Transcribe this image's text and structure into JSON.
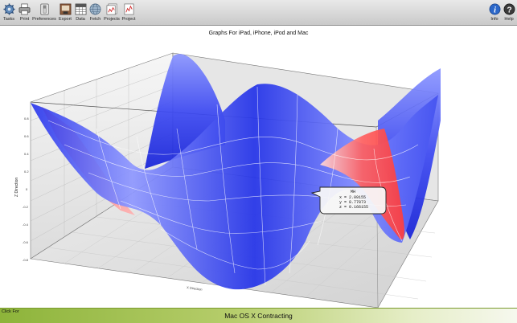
{
  "toolbar": {
    "left_items": [
      {
        "label": "Tasks",
        "icon": "gear-icon"
      },
      {
        "label": "Print",
        "icon": "printer-icon"
      },
      {
        "label": "Preferences",
        "icon": "switch-icon"
      },
      {
        "label": "Export",
        "icon": "export-icon"
      },
      {
        "label": "Data",
        "icon": "data-grid-icon"
      },
      {
        "label": "Fetch",
        "icon": "globe-icon"
      },
      {
        "label": "Projects",
        "icon": "projects-icon"
      },
      {
        "label": "Project",
        "icon": "project-chart-icon"
      }
    ],
    "right_items": [
      {
        "label": "Info",
        "icon": "info-icon"
      },
      {
        "label": "Help",
        "icon": "help-icon"
      }
    ]
  },
  "plot": {
    "title": "Graphs For iPad, iPhone, iPod and Mac",
    "z_axis_label": "Z Direction",
    "x_axis_label": "X Direction",
    "z_ticks": [
      "0.8",
      "0.6",
      "0.4",
      "0.2",
      "0",
      "-0.2",
      "-0.4",
      "-0.6",
      "-0.8"
    ],
    "tooltip": {
      "title": "MH",
      "x": "x = 2.09155",
      "y": "y = 8.77873",
      "z": "z = 0.166155"
    },
    "colors": {
      "surface_high": "#ff5a5a",
      "surface_low": "#1a2bf0",
      "grid": "#ffffff"
    }
  },
  "bottom": {
    "click_for": "Click For",
    "title": "Mac OS X Contracting"
  }
}
